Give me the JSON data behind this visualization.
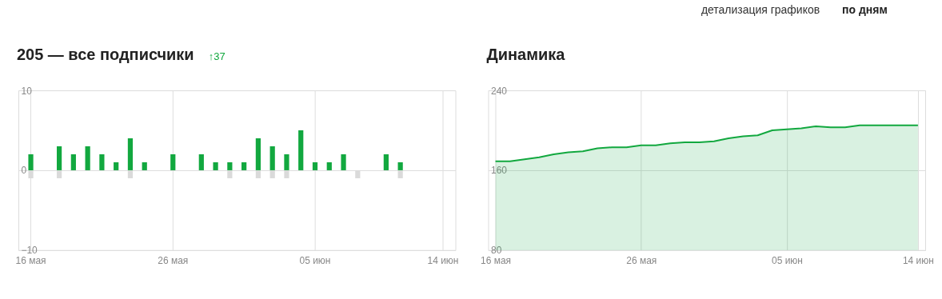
{
  "chart_data": [
    {
      "type": "bar",
      "title": "205 — все подписчики",
      "annotations": [
        "↑37"
      ],
      "categories": [
        "16 мая",
        null,
        null,
        null,
        null,
        null,
        null,
        null,
        null,
        null,
        "26 мая",
        null,
        null,
        null,
        null,
        null,
        null,
        null,
        null,
        null,
        "05 июн",
        null,
        null,
        null,
        null,
        null,
        null,
        null,
        null,
        "14 июн"
      ],
      "series": [
        {
          "color": "#12a83f",
          "values": [
            2,
            0,
            3,
            2,
            3,
            2,
            1,
            4,
            1,
            0,
            2,
            0,
            2,
            1,
            1,
            1,
            4,
            3,
            2,
            5,
            1,
            1,
            2,
            0,
            0,
            2,
            1,
            0,
            0,
            0
          ]
        },
        {
          "color": "#dadada",
          "values": [
            -1,
            0,
            -1,
            0,
            0,
            0,
            0,
            -1,
            0,
            0,
            0,
            0,
            0,
            0,
            -1,
            0,
            -1,
            -1,
            -1,
            0,
            0,
            0,
            0,
            -1,
            0,
            0,
            -1,
            0,
            0,
            0
          ]
        }
      ],
      "ylim": [
        -10,
        10
      ],
      "yticks": [
        -10,
        0,
        10
      ],
      "grid": true,
      "legend": false
    },
    {
      "type": "area",
      "title": "Динамика",
      "annotations": [
        "детализация графиков",
        "по дням"
      ],
      "categories": [
        "16 мая",
        null,
        null,
        null,
        null,
        null,
        null,
        null,
        null,
        null,
        "26 мая",
        null,
        null,
        null,
        null,
        null,
        null,
        null,
        null,
        null,
        "05 июн",
        null,
        null,
        null,
        null,
        null,
        null,
        null,
        null,
        "14 июн"
      ],
      "series": [
        {
          "color": "#13a545",
          "values": [
            169,
            169,
            171,
            173,
            176,
            178,
            179,
            182,
            183,
            183,
            185,
            185,
            187,
            188,
            188,
            189,
            192,
            194,
            195,
            200,
            201,
            202,
            204,
            203,
            203,
            205,
            205,
            205,
            205,
            205
          ]
        }
      ],
      "ylim": [
        80,
        240
      ],
      "yticks": [
        80,
        160,
        240
      ],
      "grid": true,
      "legend": false
    }
  ]
}
